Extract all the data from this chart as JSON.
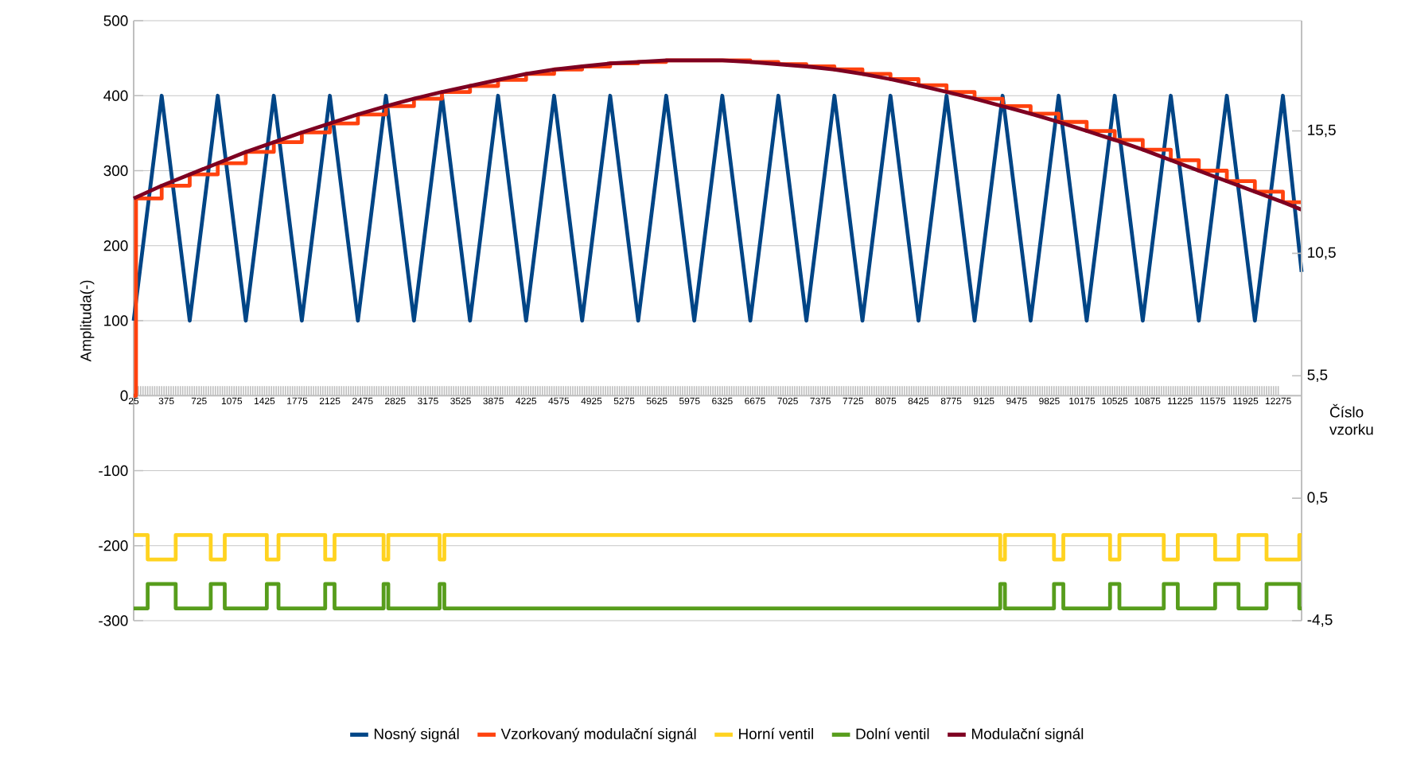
{
  "chart_data": {
    "type": "line",
    "xlabel": "Číslo vzorku",
    "ylabel": "Amplituda(-)",
    "xlim": [
      25,
      12525
    ],
    "xticks": [
      25,
      375,
      725,
      1075,
      1425,
      1775,
      2125,
      2475,
      2825,
      3175,
      3525,
      3875,
      4225,
      4575,
      4925,
      5275,
      5625,
      5975,
      6325,
      6675,
      7025,
      7375,
      7725,
      8075,
      8425,
      8775,
      9125,
      9475,
      9825,
      10175,
      10525,
      10875,
      11225,
      11575,
      11925,
      12275
    ],
    "ylim": [
      -300,
      500
    ],
    "yticks": [
      -300,
      -200,
      -100,
      0,
      100,
      200,
      300,
      400,
      500
    ],
    "y2lim": [
      -4.5,
      20
    ],
    "y2ticks": [
      {
        "value": -4.5,
        "label": "-4,5"
      },
      {
        "value": 0.5,
        "label": "0,5"
      },
      {
        "value": 5.5,
        "label": "5,5"
      },
      {
        "value": 10.5,
        "label": "10,5"
      },
      {
        "value": 15.5,
        "label": "15,5"
      }
    ],
    "grid": "y",
    "legend": "bottom",
    "series": [
      {
        "name": "Nosný signál",
        "type": "line",
        "color": "#004586",
        "x": [
          25,
          325,
          625,
          925,
          1225,
          1525,
          1825,
          2125,
          2425,
          2725,
          3025,
          3325,
          3625,
          3925,
          4225,
          4525,
          4825,
          5125,
          5425,
          5725,
          6025,
          6325,
          6625,
          6925,
          7225,
          7525,
          7825,
          8125,
          8425,
          8725,
          9025,
          9325,
          9625,
          9925,
          10225,
          10525,
          10825,
          11125,
          11425,
          11725,
          12025,
          12325,
          12525
        ],
        "values": [
          100,
          400,
          100,
          400,
          100,
          400,
          100,
          400,
          100,
          400,
          100,
          400,
          100,
          400,
          100,
          400,
          100,
          400,
          100,
          400,
          100,
          400,
          100,
          400,
          100,
          400,
          100,
          400,
          100,
          400,
          100,
          400,
          100,
          400,
          100,
          400,
          100,
          400,
          100,
          400,
          100,
          400,
          165
        ]
      },
      {
        "name": "Vzorkovaný modulační signál",
        "type": "step",
        "color": "#ff420e",
        "x": [
          25,
          50,
          325,
          625,
          925,
          1225,
          1525,
          1825,
          2125,
          2425,
          2725,
          3025,
          3325,
          3625,
          3925,
          4225,
          4525,
          4825,
          5125,
          5425,
          5725,
          6025,
          6325,
          6625,
          6925,
          7225,
          7525,
          7825,
          8125,
          8425,
          8725,
          9025,
          9325,
          9625,
          9925,
          10225,
          10525,
          10825,
          11125,
          11425,
          11725,
          12025,
          12325,
          12525
        ],
        "values": [
          0,
          263,
          280,
          295,
          310,
          325,
          338,
          351,
          363,
          375,
          386,
          396,
          405,
          413,
          421,
          429,
          435,
          439,
          443,
          445,
          447,
          447,
          447,
          445,
          442,
          439,
          435,
          429,
          422,
          414,
          405,
          396,
          386,
          376,
          365,
          353,
          341,
          328,
          314,
          300,
          286,
          272,
          258,
          258
        ]
      },
      {
        "name": "Horní ventil",
        "type": "step",
        "axis": "y2",
        "color": "#ffd320",
        "x": [
          25,
          175,
          475,
          850,
          1000,
          1450,
          1575,
          2075,
          2175,
          2700,
          2750,
          3300,
          3350,
          9300,
          9350,
          9875,
          9975,
          10475,
          10575,
          11050,
          11200,
          11600,
          11850,
          12150,
          12500,
          12525
        ],
        "values": [
          -1,
          -2,
          -1,
          -2,
          -1,
          -2,
          -1,
          -2,
          -1,
          -2,
          -1,
          -2,
          -1,
          -2,
          -1,
          -2,
          -1,
          -2,
          -1,
          -2,
          -1,
          -2,
          -1,
          -2,
          -1,
          -1
        ]
      },
      {
        "name": "Dolní ventil",
        "type": "step",
        "axis": "y2",
        "color": "#579d1c",
        "x": [
          25,
          175,
          475,
          850,
          1000,
          1450,
          1575,
          2075,
          2175,
          2700,
          2750,
          3300,
          3350,
          9300,
          9350,
          9875,
          9975,
          10475,
          10575,
          11050,
          11200,
          11600,
          11850,
          12150,
          12500,
          12525
        ],
        "values": [
          -4,
          -3,
          -4,
          -3,
          -4,
          -3,
          -4,
          -3,
          -4,
          -3,
          -4,
          -3,
          -4,
          -3,
          -4,
          -3,
          -4,
          -3,
          -4,
          -3,
          -4,
          -3,
          -4,
          -3,
          -4,
          -4
        ]
      },
      {
        "name": "Modulační signál",
        "type": "line",
        "color": "#7e0021",
        "x": [
          25,
          325,
          625,
          925,
          1225,
          1525,
          1825,
          2125,
          2425,
          2725,
          3025,
          3325,
          3625,
          3925,
          4225,
          4525,
          4825,
          5125,
          5425,
          5725,
          6025,
          6325,
          6625,
          6925,
          7225,
          7525,
          7825,
          8125,
          8425,
          8725,
          9025,
          9325,
          9625,
          9925,
          10225,
          10525,
          10825,
          11125,
          11425,
          11725,
          12025,
          12325,
          12525
        ],
        "values": [
          263,
          280,
          295,
          310,
          325,
          338,
          351,
          363,
          375,
          386,
          396,
          405,
          413,
          421,
          429,
          435,
          439,
          443,
          445,
          447,
          447,
          447,
          445,
          442,
          439,
          435,
          429,
          422,
          414,
          405,
          396,
          386,
          376,
          365,
          353,
          341,
          328,
          314,
          300,
          286,
          272,
          258,
          248
        ]
      }
    ]
  }
}
